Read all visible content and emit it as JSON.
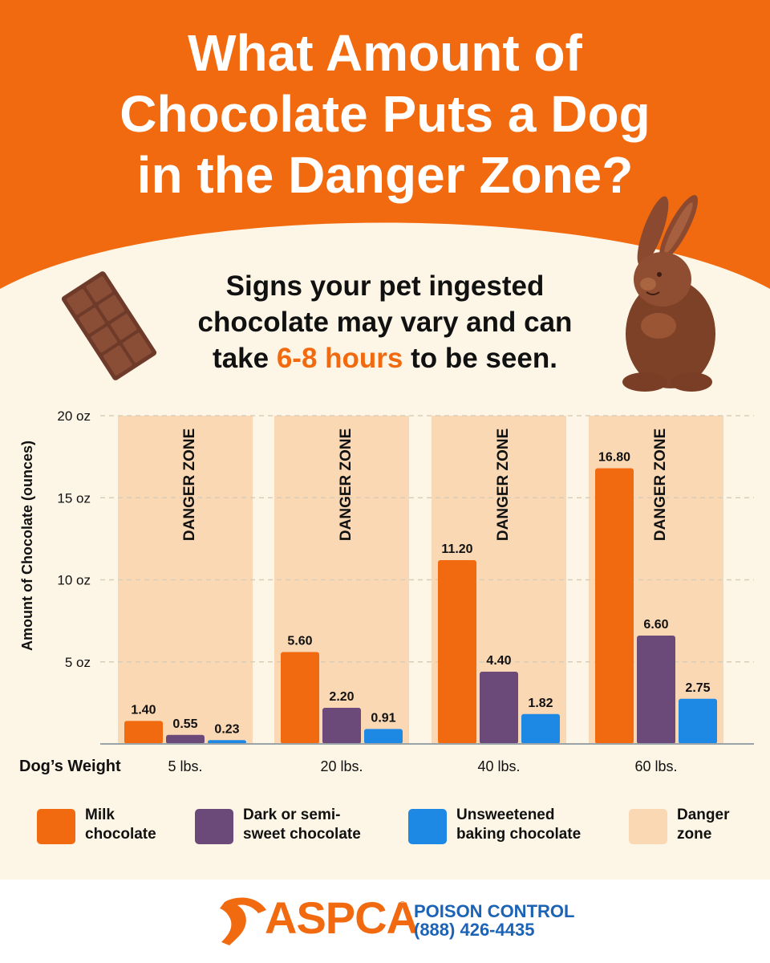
{
  "header": {
    "title_lines": [
      "What Amount of",
      "Chocolate Puts a Dog",
      "in the Danger Zone?"
    ]
  },
  "intro": {
    "line1": "Signs your pet ingested",
    "line2": "chocolate may vary and can",
    "line3_pre": "take ",
    "line3_highlight": "6-8 hours",
    "line3_post": " to be seen."
  },
  "colors": {
    "orange": "#f26a10",
    "purple": "#6b4a7a",
    "blue": "#1e88e5",
    "danger_zone": "#fad8b4",
    "background": "#fdf6e6",
    "brand_blue": "#1b63b6"
  },
  "icons": [
    "chocolate-bar-icon",
    "chocolate-bunny-icon",
    "aspca-logo-icon"
  ],
  "chart_data": {
    "type": "bar",
    "categories": [
      "5 lbs.",
      "20 lbs.",
      "40 lbs.",
      "60 lbs."
    ],
    "x_axis_title": "Dog’s Weight",
    "ylabel": "Amount of Chocolate (ounces)",
    "ylim": [
      0,
      20
    ],
    "yticks": [
      {
        "value": 5,
        "label": "5 oz"
      },
      {
        "value": 10,
        "label": "10 oz"
      },
      {
        "value": 15,
        "label": "15 oz"
      },
      {
        "value": 20,
        "label": "20 oz"
      }
    ],
    "grid": "dashed horizontal",
    "danger_zone_label": "DANGER ZONE",
    "series": [
      {
        "name": "Milk chocolate",
        "color": "#f26a10",
        "values": [
          1.4,
          5.6,
          11.2,
          16.8
        ],
        "labels": [
          "1.40",
          "5.60",
          "11.20",
          "16.80"
        ]
      },
      {
        "name": "Dark or semi-sweet chocolate",
        "color": "#6b4a7a",
        "values": [
          0.55,
          2.2,
          4.4,
          6.6
        ],
        "labels": [
          "0.55",
          "2.20",
          "4.40",
          "6.60"
        ]
      },
      {
        "name": "Unsweetened baking chocolate",
        "color": "#1e88e5",
        "values": [
          0.23,
          0.91,
          1.82,
          2.75
        ],
        "labels": [
          "0.23",
          "0.91",
          "1.82",
          "2.75"
        ]
      }
    ]
  },
  "legend": [
    {
      "line1": "Milk",
      "line2": "chocolate",
      "color": "#f26a10"
    },
    {
      "line1": "Dark or semi-",
      "line2": "sweet chocolate",
      "color": "#6b4a7a"
    },
    {
      "line1": "Unsweetened",
      "line2": "baking chocolate",
      "color": "#1e88e5"
    },
    {
      "line1": "Danger",
      "line2": "zone",
      "color": "#fad8b4"
    }
  ],
  "footer": {
    "brand": "ASPCA",
    "trademark": "®",
    "service": "POISON CONTROL",
    "phone": "(888) 426-4435"
  }
}
